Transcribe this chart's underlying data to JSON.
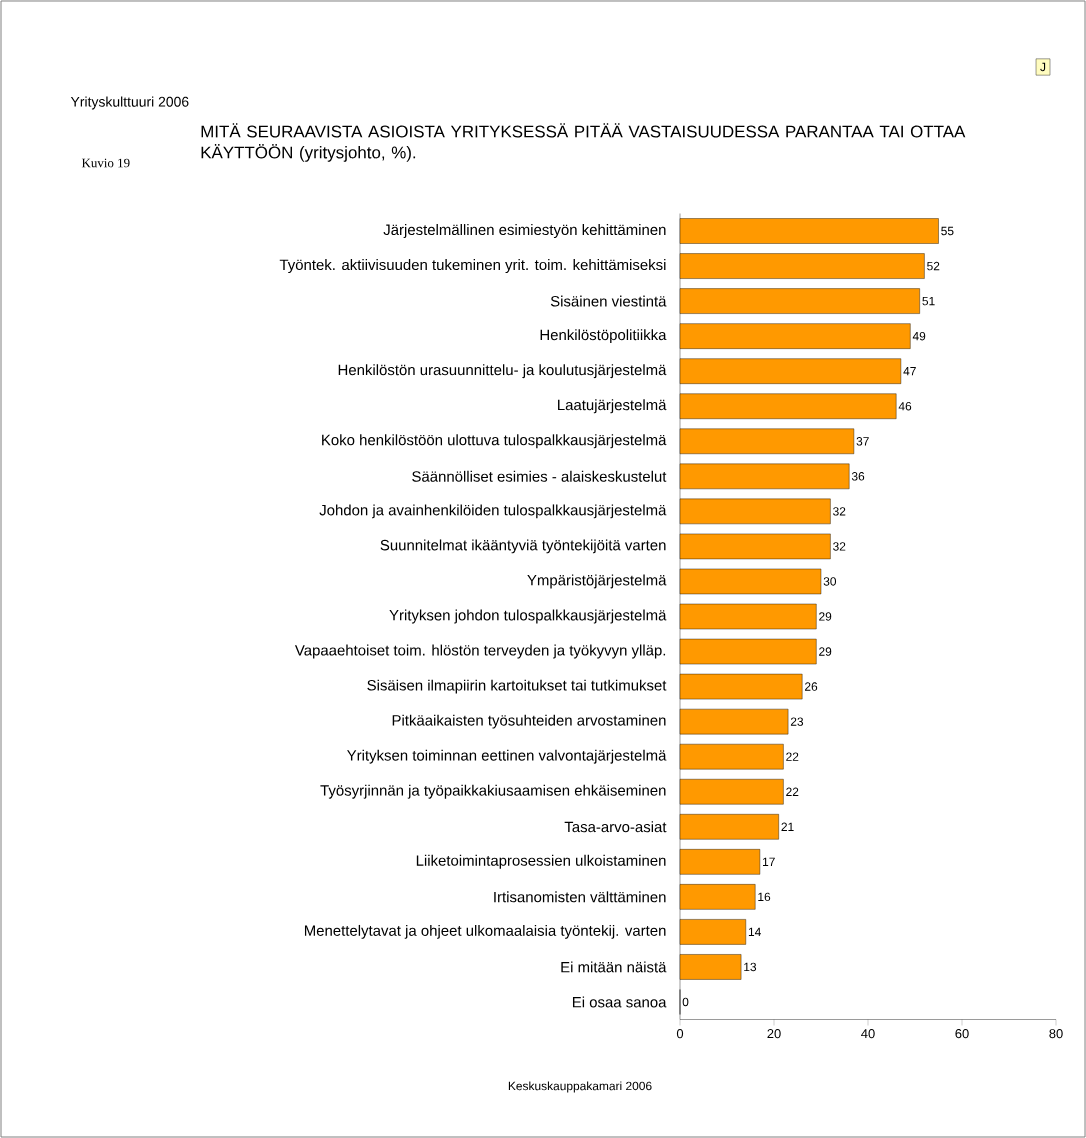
{
  "chart_data": {
    "type": "bar",
    "orientation": "horizontal",
    "title": "MITÄ SEURAAVISTA ASIOISTA YRITYKSESSÄ PITÄÄ VASTAISUUDESSA PARANTAA TAI OTTAA KÄYTTÖÖN (yritysjohto, %).",
    "categories": [
      "Järjestelmällinen esimiestyön kehittäminen",
      "Työntek. aktiivisuuden tukeminen yrit. toim. kehittämiseksi",
      "Sisäinen viestintä",
      "Henkilöstöpolitiikka",
      "Henkilöstön urasuunnittelu- ja koulutusjärjestelmä",
      "Laatujärjestelmä",
      "Koko henkilöstöön ulottuva tulospalkkausjärjestelmä",
      "Säännölliset esimies - alaiskeskustelut",
      "Johdon ja avainhenkilöiden tulospalkkausjärjestelmä",
      "Suunnitelmat ikääntyviä työntekijöitä varten",
      "Ympäristöjärjestelmä",
      "Yrityksen johdon tulospalkkausjärjestelmä",
      "Vapaaehtoiset toim. hlöstön terveyden ja työkyvyn ylläp.",
      "Sisäisen ilmapiirin kartoitukset tai tutkimukset",
      "Pitkäaikaisten työsuhteiden arvostaminen",
      "Yrityksen toiminnan eettinen valvontajärjestelmä",
      "Työsyrjinnän ja työpaikkakiusaamisen ehkäiseminen",
      "Tasa-arvo-asiat",
      "Liiketoimintaprosessien ulkoistaminen",
      "Irtisanomisten välttäminen",
      "Menettelytavat ja ohjeet ulkomaalaisia työntekij. varten",
      "Ei mitään näistä",
      "Ei osaa sanoa"
    ],
    "values": [
      55,
      52,
      51,
      49,
      47,
      46,
      37,
      36,
      32,
      32,
      30,
      29,
      29,
      26,
      23,
      22,
      22,
      21,
      17,
      16,
      14,
      13,
      0
    ],
    "color": "#ff9900",
    "xlim": [
      0,
      80
    ],
    "xticks": [
      0,
      20,
      40,
      60,
      80
    ],
    "data_labels": true,
    "annotations": [
      "Yrityskulttuuri 2006",
      "Kuvio 19",
      "J",
      "Keskuskauppakamari 2006"
    ]
  }
}
